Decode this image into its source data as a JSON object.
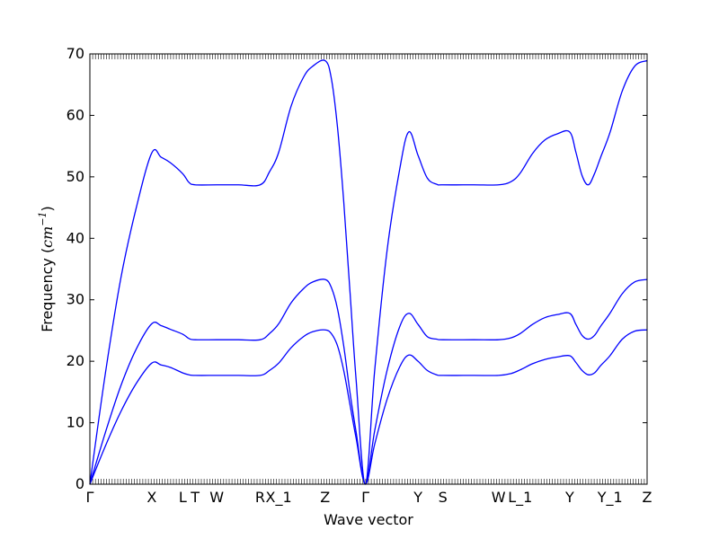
{
  "chart_data": {
    "type": "line",
    "title": "",
    "xlabel": "Wave vector",
    "ylabel_prefix": "Frequency (",
    "ylabel_unit_base": "cm",
    "ylabel_unit_exp": "−1",
    "ylabel_suffix": ")",
    "xlim": [
      0,
      9.0
    ],
    "ylim": [
      0,
      70
    ],
    "yticks": [
      0,
      10,
      20,
      30,
      40,
      50,
      60,
      70
    ],
    "grid": false,
    "legend": "none",
    "line_color": "#0000ff",
    "high_symmetry_points": [
      {
        "label": "Γ",
        "x": 0.0
      },
      {
        "label": "X",
        "x": 1.0
      },
      {
        "label": "L",
        "x": 1.5
      },
      {
        "label": "T",
        "x": 1.7
      },
      {
        "label": "W",
        "x": 2.05
      },
      {
        "label": "R",
        "x": 2.75
      },
      {
        "label": "X_1",
        "x": 3.05
      },
      {
        "label": "Z",
        "x": 3.8
      },
      {
        "label": "Γ",
        "x": 4.45
      },
      {
        "label": "Y",
        "x": 5.3
      },
      {
        "label": "S",
        "x": 5.7
      },
      {
        "label": "W",
        "x": 6.6
      },
      {
        "label": "L_1",
        "x": 6.95
      },
      {
        "label": "Y",
        "x": 7.75
      },
      {
        "label": "Y_1",
        "x": 8.4
      },
      {
        "label": "Z",
        "x": 9.0
      }
    ],
    "series": [
      {
        "x": [
          0,
          0.25,
          0.5,
          0.75,
          1.0,
          1.15,
          1.3,
          1.5,
          1.6,
          1.7,
          2.05,
          2.4,
          2.75,
          2.9,
          3.05,
          3.25,
          3.45,
          3.6,
          3.8,
          3.9,
          4.0,
          4.1,
          4.2,
          4.3,
          4.45,
          4.6,
          4.8,
          5.0,
          5.15,
          5.3,
          5.45,
          5.6,
          5.7,
          6.2,
          6.6,
          6.8,
          6.95,
          7.15,
          7.35,
          7.55,
          7.75,
          7.85,
          7.95,
          8.05,
          8.15,
          8.25,
          8.4,
          8.6,
          8.8,
          9.0
        ],
        "y": [
          0,
          6.2,
          11.8,
          16.4,
          19.7,
          19.4,
          19.0,
          18.1,
          17.8,
          17.7,
          17.7,
          17.7,
          17.7,
          18.5,
          19.7,
          22.2,
          24.0,
          24.8,
          25.1,
          24.5,
          22.5,
          18.5,
          13.0,
          7.5,
          0,
          6.5,
          13.8,
          19.0,
          21.0,
          20.0,
          18.5,
          17.8,
          17.7,
          17.7,
          17.7,
          18.0,
          18.6,
          19.6,
          20.3,
          20.7,
          20.9,
          19.8,
          18.5,
          17.8,
          18.1,
          19.3,
          20.9,
          23.6,
          24.9,
          25.1
        ]
      },
      {
        "x": [
          0,
          0.25,
          0.5,
          0.75,
          1.0,
          1.15,
          1.3,
          1.5,
          1.6,
          1.7,
          2.05,
          2.4,
          2.75,
          2.9,
          3.05,
          3.25,
          3.45,
          3.6,
          3.8,
          3.9,
          4.0,
          4.1,
          4.2,
          4.3,
          4.45,
          4.6,
          4.8,
          5.0,
          5.15,
          5.3,
          5.45,
          5.6,
          5.7,
          6.2,
          6.6,
          6.8,
          6.95,
          7.15,
          7.35,
          7.55,
          7.75,
          7.85,
          7.95,
          8.05,
          8.15,
          8.25,
          8.4,
          8.6,
          8.8,
          9.0
        ],
        "y": [
          0,
          8.4,
          16.0,
          22.0,
          26.1,
          25.8,
          25.2,
          24.4,
          23.7,
          23.5,
          23.5,
          23.5,
          23.5,
          24.5,
          26.1,
          29.5,
          31.8,
          32.9,
          33.3,
          32.0,
          28.5,
          22.5,
          15.0,
          8.5,
          0,
          8.7,
          18.5,
          25.5,
          27.8,
          26.0,
          24.0,
          23.6,
          23.5,
          23.5,
          23.5,
          23.8,
          24.5,
          26.0,
          27.1,
          27.6,
          27.8,
          26.0,
          24.2,
          23.6,
          24.2,
          25.7,
          27.8,
          31.0,
          32.9,
          33.3
        ]
      },
      {
        "x": [
          0,
          0.25,
          0.5,
          0.75,
          1.0,
          1.15,
          1.3,
          1.5,
          1.6,
          1.7,
          2.05,
          2.4,
          2.75,
          2.9,
          3.05,
          3.25,
          3.45,
          3.6,
          3.8,
          3.9,
          4.0,
          4.1,
          4.2,
          4.3,
          4.45,
          4.6,
          4.8,
          5.0,
          5.15,
          5.3,
          5.45,
          5.6,
          5.7,
          6.2,
          6.6,
          6.8,
          6.95,
          7.15,
          7.35,
          7.55,
          7.75,
          7.85,
          7.95,
          8.05,
          8.15,
          8.25,
          8.4,
          8.6,
          8.8,
          9.0
        ],
        "y": [
          0,
          18.0,
          33.5,
          45.0,
          53.9,
          53.2,
          52.3,
          50.5,
          49.1,
          48.7,
          48.7,
          48.7,
          48.7,
          50.8,
          54.0,
          61.5,
          66.2,
          68.0,
          68.9,
          66.0,
          58.0,
          46.0,
          31.5,
          17.0,
          0,
          18.5,
          38.0,
          51.0,
          57.3,
          53.5,
          49.8,
          48.8,
          48.7,
          48.7,
          48.7,
          49.2,
          50.6,
          53.8,
          56.0,
          57.0,
          57.3,
          54.0,
          50.2,
          48.7,
          50.5,
          53.2,
          57.2,
          64.0,
          68.0,
          68.9
        ]
      }
    ]
  }
}
